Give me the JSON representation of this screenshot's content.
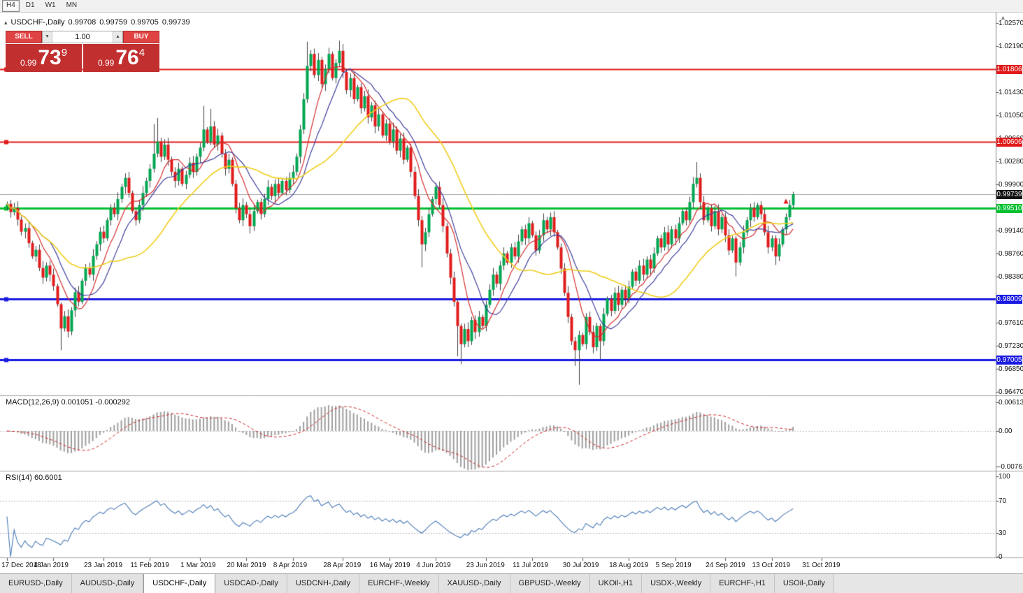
{
  "toolbar": {
    "timeframes": [
      {
        "label": "H4",
        "active": true
      },
      {
        "label": "D1",
        "active": false
      },
      {
        "label": "W1",
        "active": false
      },
      {
        "label": "MN",
        "active": false
      }
    ]
  },
  "header": {
    "collapse_icon": "▴",
    "symbol": "USDCHF-,Daily",
    "open": "0.99708",
    "high": "0.99759",
    "low": "0.99705",
    "close": "0.99739"
  },
  "trade_panel": {
    "sell_label": "SELL",
    "buy_label": "BUY",
    "volume": "1.00",
    "volume_down_icon": "▼",
    "volume_up_icon": "▲",
    "sell_price": {
      "prefix": "0.99",
      "big": "73",
      "sup": "9"
    },
    "buy_price": {
      "prefix": "0.99",
      "big": "76",
      "sup": "4"
    }
  },
  "scroll_icon": "▲",
  "indicators": {
    "macd_label": "MACD(12,26,9) 0.001051 -0.000292",
    "rsi_label": "RSI(14) 60.6001"
  },
  "chart_data": {
    "type": "candlestick",
    "symbol": "USDCHF-,Daily",
    "timeframe": "Daily",
    "current_quote": {
      "open": 0.99708,
      "high": 0.99759,
      "low": 0.99705,
      "close": 0.99739,
      "bid": 0.99739
    },
    "price_axis_ticks": [
      "1.02570",
      "1.02190",
      "1.01430",
      "1.01050",
      "1.00660",
      "1.00280",
      "0.99900",
      "0.99140",
      "0.98760",
      "0.98380",
      "0.97610",
      "0.97230",
      "0.96850",
      "0.96470"
    ],
    "hlines": [
      {
        "price": 1.01806,
        "label": "1.01806",
        "color": "#e21a1a",
        "width": 2
      },
      {
        "price": 1.00606,
        "label": "1.00606",
        "color": "#e21a1a",
        "width": 2
      },
      {
        "price": 0.9951,
        "label": "0.99510",
        "color": "#00c030",
        "width": 3
      },
      {
        "price": 0.98009,
        "label": "0.98009",
        "color": "#1a1ae2",
        "width": 3
      },
      {
        "price": 0.97005,
        "label": "0.97005",
        "color": "#1a1ae2",
        "width": 3
      }
    ],
    "bid_label": {
      "price": 0.99739,
      "label": "0.99739",
      "bg": "#111111"
    },
    "date_labels": [
      {
        "label": "17 Dec 2018",
        "i": 0
      },
      {
        "label": "4 Jan 2019",
        "i": 13
      },
      {
        "label": "23 Jan 2019",
        "i": 27
      },
      {
        "label": "11 Feb 2019",
        "i": 40
      },
      {
        "label": "1 Mar 2019",
        "i": 54
      },
      {
        "label": "20 Mar 2019",
        "i": 67
      },
      {
        "label": "8 Apr 2019",
        "i": 80
      },
      {
        "label": "28 Apr 2019",
        "i": 94
      },
      {
        "label": "16 May 2019",
        "i": 107
      },
      {
        "label": "4 Jun 2019",
        "i": 120
      },
      {
        "label": "23 Jun 2019",
        "i": 134
      },
      {
        "label": "11 Jul 2019",
        "i": 147
      },
      {
        "label": "30 Jul 2019",
        "i": 161
      },
      {
        "label": "18 Aug 2019",
        "i": 174
      },
      {
        "label": "5 Sep 2019",
        "i": 187
      },
      {
        "label": "24 Sep 2019",
        "i": 201
      },
      {
        "label": "13 Oct 2019",
        "i": 214
      },
      {
        "label": "31 Oct 2019",
        "i": 228
      }
    ],
    "candles": {
      "first_open": 0.9952,
      "closes": [
        0.9958,
        0.9944,
        0.9951,
        0.9932,
        0.9912,
        0.9918,
        0.9893,
        0.9871,
        0.9882,
        0.9852,
        0.9836,
        0.9856,
        0.9841,
        0.9822,
        0.9792,
        0.9752,
        0.9772,
        0.9747,
        0.9782,
        0.9812,
        0.9796,
        0.9831,
        0.9852,
        0.9841,
        0.9872,
        0.9891,
        0.9912,
        0.9901,
        0.9931,
        0.9951,
        0.9941,
        0.9966,
        0.9986,
        1.0001,
        0.9976,
        0.9946,
        0.9931,
        0.9956,
        0.9976,
        0.9996,
        1.0016,
        1.0041,
        1.0061,
        1.0036,
        1.0056,
        1.0031,
        1.0011,
        0.9996,
        1.0016,
        0.9991,
        1.0006,
        1.0026,
        1.0011,
        1.0036,
        1.0051,
        1.0081,
        1.0061,
        1.0086,
        1.0056,
        1.0071,
        1.0041,
        1.0016,
        1.0031,
        0.9991,
        0.9951,
        0.9931,
        0.9956,
        0.9941,
        0.9921,
        0.9946,
        0.9961,
        0.9941,
        0.9966,
        0.9986,
        0.9971,
        0.9991,
        0.9976,
        0.9996,
        0.9981,
        1.0001,
        1.0011,
        1.0036,
        1.0081,
        1.0131,
        1.0186,
        1.0206,
        1.0171,
        1.0196,
        1.0156,
        1.0181,
        1.0206,
        1.0166,
        1.0191,
        1.0211,
        1.0176,
        1.0146,
        1.0166,
        1.0131,
        1.0151,
        1.0116,
        1.0136,
        1.0101,
        1.0121,
        1.0086,
        1.0106,
        1.0071,
        1.0091,
        1.0061,
        1.0081,
        1.0046,
        1.0066,
        1.0031,
        1.0051,
        1.0011,
        0.9971,
        0.9931,
        0.9891,
        0.9911,
        0.9941,
        0.9966,
        0.9986,
        0.9956,
        0.9921,
        0.9876,
        0.9836,
        0.9796,
        0.9756,
        0.9726,
        0.9751,
        0.9731,
        0.9766,
        0.9746,
        0.9771,
        0.9756,
        0.9791,
        0.9816,
        0.9841,
        0.9826,
        0.9856,
        0.9876,
        0.9861,
        0.9886,
        0.9871,
        0.9896,
        0.9916,
        0.9901,
        0.9926,
        0.9906,
        0.9881,
        0.9906,
        0.9931,
        0.9916,
        0.9936,
        0.9911,
        0.9886,
        0.9851,
        0.9811,
        0.9771,
        0.9731,
        0.9716,
        0.9741,
        0.9726,
        0.9771,
        0.9746,
        0.9721,
        0.9756,
        0.9731,
        0.9776,
        0.9801,
        0.9781,
        0.9811,
        0.9791,
        0.9816,
        0.9801,
        0.9821,
        0.9846,
        0.9831,
        0.9856,
        0.9841,
        0.9866,
        0.9851,
        0.9876,
        0.9901,
        0.9886,
        0.9911,
        0.9891,
        0.9916,
        0.9901,
        0.9926,
        0.9946,
        0.9931,
        0.9961,
        0.9991,
        1.0001,
        0.9961,
        0.9931,
        0.9951,
        0.9921,
        0.9946,
        0.9916,
        0.9936,
        0.9906,
        0.9881,
        0.9901,
        0.9861,
        0.9886,
        0.9911,
        0.9931,
        0.9951,
        0.9936,
        0.9956,
        0.9941,
        0.9911,
        0.9886,
        0.9901,
        0.9871,
        0.9891,
        0.9916,
        0.9936,
        0.9956,
        0.9974
      ],
      "wick_overrides": {
        "15": [
          0.9795,
          0.9716
        ],
        "41": [
          1.009,
          1.001
        ],
        "42": [
          1.01,
          1.0035
        ],
        "55": [
          1.012,
          1.0045
        ],
        "57": [
          1.0115,
          1.0055
        ],
        "68": [
          0.995,
          0.9909
        ],
        "84": [
          1.0226,
          1.0125
        ],
        "93": [
          1.0228,
          1.0185
        ],
        "116": [
          0.9938,
          0.9853
        ],
        "126": [
          0.98,
          0.9706
        ],
        "127": [
          0.976,
          0.9693
        ],
        "159": [
          0.9738,
          0.969
        ],
        "160": [
          0.9748,
          0.9659
        ],
        "166": [
          0.976,
          0.9701
        ],
        "193": [
          1.0027,
          0.9985
        ],
        "204": [
          0.9905,
          0.9838
        ],
        "215": [
          0.9906,
          0.9857
        ],
        "220": [
          0.9978,
          0.9951
        ]
      }
    },
    "moving_averages": [
      {
        "period": 8,
        "color": "#d42e2e"
      },
      {
        "period": 13,
        "color": "#3c3c9e"
      },
      {
        "period": 30,
        "color": "#f0cd1b"
      }
    ],
    "markers": [
      {
        "i": 218,
        "price": 0.9962,
        "dir": "up",
        "color": "#e21a1a"
      }
    ],
    "macd": {
      "params": "12,26,9",
      "value": 0.001051,
      "signal_value": -0.000292,
      "axis": [
        "0.00613",
        "0.00",
        "-0.00761"
      ],
      "axis_values": [
        0.00613,
        0,
        -0.00761
      ],
      "hist_color": "#9e9e9e",
      "signal_color": "#cc2222"
    },
    "rsi": {
      "period": 14,
      "value": 60.6001,
      "levels": [
        {
          "label": "100",
          "v": 100
        },
        {
          "label": "70",
          "v": 70
        },
        {
          "label": "30",
          "v": 30
        },
        {
          "label": "0",
          "v": 0
        }
      ],
      "dotted_levels": [
        70,
        30
      ],
      "line_color": "#4a7ab5"
    },
    "colors": {
      "candle_up": "#00a651",
      "candle_down": "#e01c1c",
      "wick": "#404040",
      "bid_line": "#a0a0a0",
      "background": "#ffffff"
    }
  },
  "tabs": [
    {
      "label": "EURUSD-,Daily",
      "active": false
    },
    {
      "label": "AUDUSD-,Daily",
      "active": false
    },
    {
      "label": "USDCHF-,Daily",
      "active": true
    },
    {
      "label": "USDCAD-,Daily",
      "active": false
    },
    {
      "label": "USDCNH-,Daily",
      "active": false
    },
    {
      "label": "EURCHF-,Weekly",
      "active": false
    },
    {
      "label": "XAUUSD-,Daily",
      "active": false
    },
    {
      "label": "GBPUSD-,Weekly",
      "active": false
    },
    {
      "label": "UKOil-,H1",
      "active": false
    },
    {
      "label": "USDX-,Weekly",
      "active": false
    },
    {
      "label": "EURCHF-,H1",
      "active": false
    },
    {
      "label": "USOil-,Daily",
      "active": false
    }
  ]
}
